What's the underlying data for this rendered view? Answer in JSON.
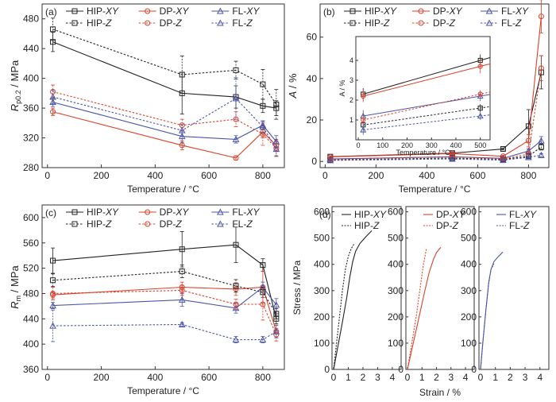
{
  "colors": {
    "HIP": "#222222",
    "DP": "#d9412b",
    "FL": "#4a55a8"
  },
  "chart_data": [
    {
      "panel": "(a)",
      "type": "line",
      "xlabel": "Temperature / °C",
      "ylabel_main": "R",
      "ylabel_sub": "p0.2",
      "ylabel_unit": " / MPa",
      "xlim": [
        -20,
        880
      ],
      "ylim": [
        280,
        500
      ],
      "xticks": [
        0,
        200,
        400,
        600,
        800
      ],
      "yticks": [
        280,
        320,
        360,
        400,
        440,
        480
      ],
      "legend_ncol": 3,
      "legend_pos": "top",
      "series": [
        {
          "name": "HIP-XY",
          "group": "HIP",
          "dashed": false,
          "marker": "square",
          "x": [
            20,
            500,
            700,
            800,
            850
          ],
          "y": [
            449,
            380,
            375,
            363,
            360
          ],
          "err": [
            13,
            28,
            15,
            9,
            10
          ]
        },
        {
          "name": "DP-XY",
          "group": "DP",
          "dashed": false,
          "marker": "circle",
          "x": [
            20,
            500,
            700,
            800,
            850
          ],
          "y": [
            355,
            310,
            293,
            328,
            310
          ],
          "err": [
            5,
            6,
            3,
            8,
            8
          ]
        },
        {
          "name": "FL-XY",
          "group": "FL",
          "dashed": false,
          "marker": "triangle",
          "x": [
            20,
            500,
            700,
            800,
            850
          ],
          "y": [
            368,
            322,
            318,
            337,
            315
          ],
          "err": [
            6,
            8,
            5,
            5,
            8
          ]
        },
        {
          "name": "HIP-Z",
          "group": "HIP",
          "dashed": true,
          "marker": "square",
          "x": [
            20,
            500,
            700,
            800,
            850
          ],
          "y": [
            466,
            405,
            411,
            392,
            365
          ],
          "err": [
            15,
            25,
            12,
            20,
            20
          ]
        },
        {
          "name": "DP-Z",
          "group": "DP",
          "dashed": true,
          "marker": "circle",
          "x": [
            20,
            500,
            700,
            800,
            850
          ],
          "y": [
            382,
            337,
            345,
            325,
            306
          ],
          "err": [
            9,
            8,
            10,
            15,
            10
          ]
        },
        {
          "name": "FL-Z",
          "group": "FL",
          "dashed": true,
          "marker": "triangle",
          "x": [
            20,
            500,
            700,
            800,
            850
          ],
          "y": [
            375,
            330,
            373,
            335,
            305
          ],
          "err": [
            9,
            8,
            28,
            8,
            10
          ]
        }
      ]
    },
    {
      "panel": "(b)",
      "type": "line",
      "xlabel": "Temperature / °C",
      "ylabel_main": "A",
      "ylabel_sub": "",
      "ylabel_unit": " / %",
      "xlim": [
        -20,
        880
      ],
      "ylim": [
        -3,
        76
      ],
      "xticks": [
        0,
        200,
        400,
        600,
        800
      ],
      "yticks": [
        0,
        20,
        40,
        60
      ],
      "legend_ncol": 3,
      "legend_pos": "top",
      "series": [
        {
          "name": "HIP-XY",
          "group": "HIP",
          "dashed": false,
          "marker": "square",
          "x": [
            20,
            500,
            700,
            800,
            850
          ],
          "y": [
            2.3,
            4.0,
            6.0,
            17.0,
            43.0
          ],
          "err": [
            0.4,
            0.4,
            0.5,
            8,
            8
          ]
        },
        {
          "name": "DP-XY",
          "group": "DP",
          "dashed": false,
          "marker": "circle",
          "x": [
            20,
            500,
            700,
            800,
            850
          ],
          "y": [
            2.2,
            3.8,
            2.5,
            10.0,
            70.0
          ],
          "err": [
            0.4,
            0.4,
            0.5,
            3,
            8
          ]
        },
        {
          "name": "FL-XY",
          "group": "FL",
          "dashed": false,
          "marker": "triangle",
          "x": [
            20,
            500,
            700,
            800,
            850
          ],
          "y": [
            1.2,
            2.2,
            1.5,
            5.0,
            10.0
          ],
          "err": [
            0.2,
            0.3,
            0.3,
            1,
            2
          ]
        },
        {
          "name": "HIP-Z",
          "group": "HIP",
          "dashed": true,
          "marker": "square",
          "x": [
            20,
            500,
            700,
            800,
            850
          ],
          "y": [
            0.7,
            1.6,
            1.0,
            2.5,
            7.0
          ],
          "err": [
            0.3,
            0.3,
            0.3,
            0.8,
            1.5
          ]
        },
        {
          "name": "DP-Z",
          "group": "DP",
          "dashed": true,
          "marker": "circle",
          "x": [
            20,
            500,
            700,
            800,
            850
          ],
          "y": [
            1.0,
            2.3,
            1.2,
            3.5,
            45.0
          ],
          "err": [
            0.3,
            0.3,
            0.3,
            1,
            6
          ]
        },
        {
          "name": "FL-Z",
          "group": "FL",
          "dashed": true,
          "marker": "triangle",
          "x": [
            20,
            500,
            700,
            800,
            850
          ],
          "y": [
            0.5,
            1.2,
            0.6,
            2.0,
            3.0
          ],
          "err": [
            0.2,
            0.2,
            0.2,
            0.5,
            0.8
          ]
        }
      ],
      "inset": {
        "xlabel": "Temperature / °C",
        "ylabel": "A / %",
        "xlim": [
          -10,
          540
        ],
        "ylim": [
          0,
          5.2
        ],
        "xticks": [
          0,
          100,
          200,
          300,
          400,
          500
        ],
        "yticks": [
          1,
          2,
          3,
          4
        ],
        "x": [
          20,
          500
        ],
        "series": [
          {
            "group": "HIP",
            "dashed": false,
            "marker": "square",
            "y": [
              2.3,
              4.0
            ],
            "err": [
              0.3,
              0.3
            ]
          },
          {
            "group": "DP",
            "dashed": false,
            "marker": "circle",
            "y": [
              2.2,
              3.7
            ],
            "err": [
              0.3,
              0.35
            ]
          },
          {
            "group": "FL",
            "dashed": false,
            "marker": "triangle",
            "y": [
              1.2,
              2.2
            ],
            "err": [
              0.3,
              0.25
            ]
          },
          {
            "group": "HIP",
            "dashed": true,
            "marker": "square",
            "y": [
              0.75,
              1.6
            ],
            "err": [
              0.2,
              0.2
            ]
          },
          {
            "group": "DP",
            "dashed": true,
            "marker": "circle",
            "y": [
              1.0,
              2.3
            ],
            "err": [
              0.25,
              0.2
            ]
          },
          {
            "group": "FL",
            "dashed": true,
            "marker": "triangle",
            "y": [
              0.5,
              1.2
            ],
            "err": [
              0.25,
              0.2
            ]
          }
        ]
      }
    },
    {
      "panel": "(c)",
      "type": "line",
      "xlabel": "Temperature / °C",
      "ylabel_main": "R",
      "ylabel_sub": "m",
      "ylabel_unit": " / MPa",
      "xlim": [
        -20,
        880
      ],
      "ylim": [
        360,
        620
      ],
      "xticks": [
        0,
        200,
        400,
        600,
        800
      ],
      "yticks": [
        360,
        400,
        440,
        480,
        520,
        560,
        600
      ],
      "legend_ncol": 3,
      "legend_pos": "top",
      "series": [
        {
          "name": "HIP-XY",
          "group": "HIP",
          "dashed": false,
          "marker": "square",
          "x": [
            20,
            500,
            700,
            800,
            850
          ],
          "y": [
            532,
            550,
            557,
            525,
            440
          ],
          "err": [
            20,
            28,
            28,
            10,
            8
          ]
        },
        {
          "name": "DP-XY",
          "group": "DP",
          "dashed": false,
          "marker": "circle",
          "x": [
            20,
            500,
            700,
            800,
            850
          ],
          "y": [
            478,
            490,
            487,
            490,
            420
          ],
          "err": [
            5,
            8,
            10,
            25,
            10
          ]
        },
        {
          "name": "FL-XY",
          "group": "FL",
          "dashed": false,
          "marker": "triangle",
          "x": [
            20,
            500,
            700,
            800,
            850
          ],
          "y": [
            461,
            470,
            457,
            490,
            462
          ],
          "err": [
            5,
            10,
            8,
            8,
            10
          ]
        },
        {
          "name": "HIP-Z",
          "group": "HIP",
          "dashed": true,
          "marker": "square",
          "x": [
            20,
            500,
            700,
            800,
            850
          ],
          "y": [
            501,
            515,
            492,
            482,
            448
          ],
          "err": [
            10,
            10,
            10,
            8,
            8
          ]
        },
        {
          "name": "DP-Z",
          "group": "DP",
          "dashed": true,
          "marker": "circle",
          "x": [
            20,
            500,
            700,
            800,
            850
          ],
          "y": [
            480,
            485,
            463,
            463,
            415
          ],
          "err": [
            10,
            8,
            8,
            25,
            10
          ]
        },
        {
          "name": "FL-Z",
          "group": "FL",
          "dashed": true,
          "marker": "triangle",
          "x": [
            20,
            500,
            700,
            800,
            850
          ],
          "y": [
            429,
            431,
            407,
            407,
            420
          ],
          "err": [
            25,
            3,
            5,
            5,
            10
          ]
        }
      ]
    },
    {
      "panel": "(d)",
      "type": "line",
      "ylabel": "Stress / MPa",
      "xlabel": "Strain / %",
      "ylim": [
        0,
        620
      ],
      "yticks": [
        0,
        100,
        200,
        300,
        400,
        500,
        600
      ],
      "xlim": [
        0,
        4.6
      ],
      "xticks": [
        0,
        1,
        2,
        3,
        4
      ],
      "subplots": [
        {
          "series": [
            {
              "name": "HIP-XY",
              "group": "HIP",
              "dashed": false,
              "x": [
                0,
                0.3,
                0.6,
                0.9,
                1.1,
                1.3,
                1.5,
                1.8,
                2.2,
                2.6
              ],
              "y": [
                0,
                90,
                180,
                275,
                350,
                410,
                450,
                480,
                505,
                528
              ]
            },
            {
              "name": "HIP-Z",
              "group": "HIP",
              "dashed": true,
              "x": [
                0,
                0.2,
                0.4,
                0.6,
                0.8,
                1.0,
                1.2,
                1.4
              ],
              "y": [
                0,
                100,
                200,
                300,
                380,
                430,
                460,
                478
              ]
            }
          ]
        },
        {
          "series": [
            {
              "name": "DP-XY",
              "group": "DP",
              "dashed": false,
              "x": [
                0,
                0.4,
                0.8,
                1.2,
                1.5,
                1.8,
                2.0,
                2.3
              ],
              "y": [
                0,
                100,
                200,
                300,
                370,
                420,
                445,
                465
              ]
            },
            {
              "name": "DP-Z",
              "group": "DP",
              "dashed": true,
              "x": [
                0,
                0.3,
                0.6,
                0.9,
                1.1,
                1.3
              ],
              "y": [
                0,
                100,
                200,
                320,
                400,
                458
              ]
            }
          ]
        },
        {
          "series": [
            {
              "name": "FL-XY",
              "group": "FL",
              "dashed": false,
              "x": [
                0,
                0.15,
                0.35,
                0.55,
                0.7,
                0.9,
                1.2,
                1.5
              ],
              "y": [
                0,
                100,
                220,
                330,
                380,
                410,
                430,
                447
              ]
            },
            {
              "name": "FL-Z",
              "group": "FL",
              "dashed": true,
              "x": [
                0,
                0.15,
                0.35,
                0.55,
                0.7,
                0.9
              ],
              "y": [
                0,
                100,
                220,
                330,
                380,
                402
              ]
            }
          ]
        }
      ]
    }
  ]
}
